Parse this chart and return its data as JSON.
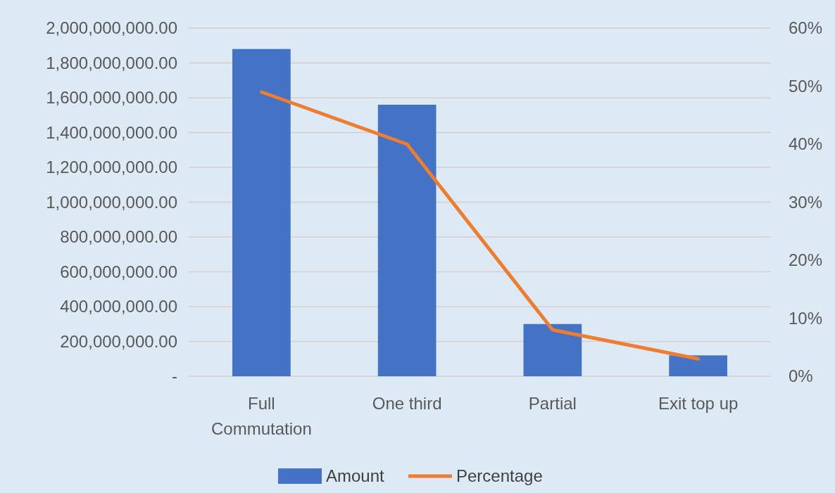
{
  "chart_data": {
    "type": "bar",
    "categories": [
      "Full Commutation",
      "One third",
      "Partial",
      "Exit top up"
    ],
    "series": [
      {
        "name": "Amount",
        "color": "#4472c4",
        "values": [
          1880000000,
          1560000000,
          300000000,
          120000000
        ]
      },
      {
        "name": "Percentage",
        "type": "line",
        "axis": "y2",
        "color": "#ed7d31",
        "values": [
          49,
          40,
          8,
          3
        ]
      }
    ],
    "ylim": [
      0,
      2000000000
    ],
    "yticks": [
      {
        "value": 0,
        "label": "-"
      },
      {
        "value": 200000000,
        "label": "200,000,000.00"
      },
      {
        "value": 400000000,
        "label": "400,000,000.00"
      },
      {
        "value": 600000000,
        "label": "600,000,000.00"
      },
      {
        "value": 800000000,
        "label": "800,000,000.00"
      },
      {
        "value": 1000000000,
        "label": "1,000,000,000.00"
      },
      {
        "value": 1200000000,
        "label": "1,200,000,000.00"
      },
      {
        "value": 1400000000,
        "label": "1,400,000,000.00"
      },
      {
        "value": 1600000000,
        "label": "1,600,000,000.00"
      },
      {
        "value": 1800000000,
        "label": "1,800,000,000.00"
      },
      {
        "value": 2000000000,
        "label": "2,000,000,000.00"
      }
    ],
    "y2lim": [
      0,
      60
    ],
    "y2ticks": [
      {
        "value": 0,
        "label": "0%"
      },
      {
        "value": 10,
        "label": "10%"
      },
      {
        "value": 20,
        "label": "20%"
      },
      {
        "value": 30,
        "label": "30%"
      },
      {
        "value": 40,
        "label": "40%"
      },
      {
        "value": 50,
        "label": "50%"
      },
      {
        "value": 60,
        "label": "60%"
      }
    ],
    "grid": "y",
    "legend": "bottom",
    "line_style": "solid",
    "marker": "none"
  }
}
